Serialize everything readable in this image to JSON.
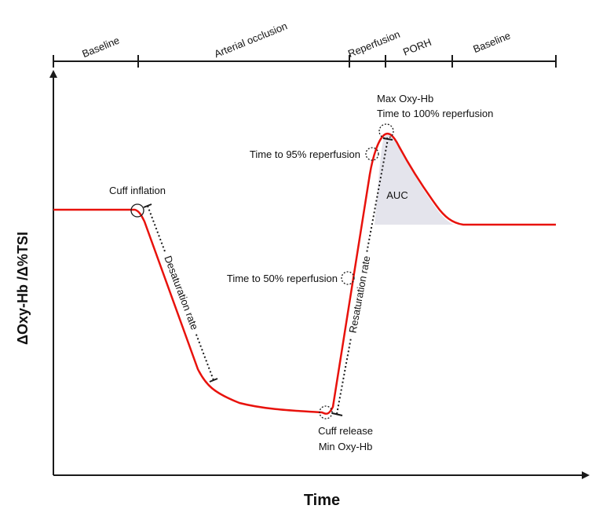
{
  "phases": {
    "baseline_1": "Baseline",
    "arterial_occlusion": "Arterial occlusion",
    "reperfusion": "Reperfusion",
    "porh": "PORH",
    "baseline_2": "Baseline"
  },
  "annotations": {
    "cuff_inflation": "Cuff inflation",
    "desaturation_rate": "Desaturation rate",
    "cuff_release": "Cuff release",
    "min_oxy_hb": "Min Oxy-Hb",
    "resaturation_rate": "Resaturation rate",
    "time_50": "Time to 50% reperfusion",
    "time_95": "Time to 95% reperfusion",
    "max_oxy_hb": "Max Oxy-Hb",
    "time_100": "Time to 100% reperfusion",
    "auc": "AUC"
  },
  "axes": {
    "x_title": "Time",
    "y_title": "ΔOxy-Hb /Δ%TSI"
  },
  "colors": {
    "curve": "#e8120c",
    "auc_fill": "#e4e4ec",
    "axis": "#1a1a1a"
  }
}
